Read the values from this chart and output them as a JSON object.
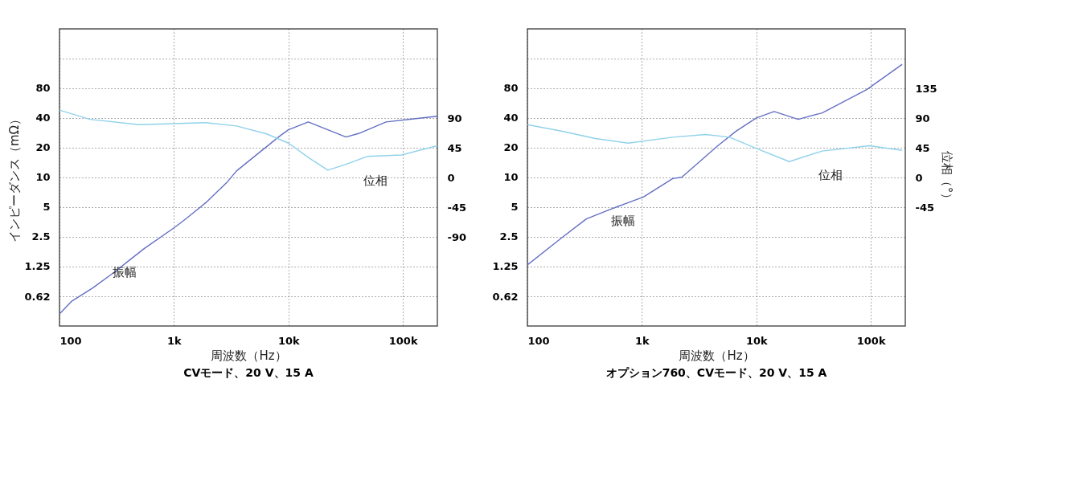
{
  "chart_data": [
    {
      "type": "line",
      "xlabel": "周波数（Hz）",
      "ylabel": "インピーダンス（mΩ）",
      "log": "xy",
      "grid": true,
      "line_style": "solid",
      "xlim": [
        100,
        200000
      ],
      "xticks": [
        100,
        {
          "value": 1000,
          "label": "1k"
        },
        {
          "value": 10000,
          "label": "10k"
        },
        {
          "value": 100000,
          "label": "100k"
        }
      ],
      "ylim": [
        0.31,
        320
      ],
      "yticks": [
        0.62,
        1.25,
        2.5,
        5,
        10,
        20,
        40,
        80,
        {
          "value": 160,
          "label": null
        }
      ],
      "y2lim": [
        -225,
        225
      ],
      "y2ticks": [
        -90,
        -45,
        0,
        45,
        90
      ],
      "series": [
        {
          "name": "振幅",
          "color": "#6470c4",
          "x": [
            100,
            127,
            194,
            301,
            383,
            552,
            1030,
            1310,
            1890,
            2930,
            3520,
            8320,
            10000,
            14900,
            22100,
            31800,
            41000,
            71300,
            200000
          ],
          "values": [
            0.41,
            0.55,
            0.75,
            1.09,
            1.36,
            1.9,
            3.14,
            3.9,
            5.5,
            9.0,
            11.6,
            26,
            30.3,
            36.4,
            30.3,
            25.6,
            27.8,
            36.4,
            41.6
          ]
        },
        {
          "name": "位相",
          "color": "#90d2ea",
          "axis": "y2",
          "x": [
            100,
            184,
            494,
            1890,
            3520,
            6450,
            10000,
            15300,
            22100,
            31800,
            49300,
            97200,
            200000
          ],
          "values": [
            102,
            88,
            80,
            83,
            78,
            66,
            52,
            29,
            11,
            20,
            32,
            34,
            48
          ]
        }
      ],
      "annotations": [
        "CVモード、20 V、15 A"
      ]
    },
    {
      "type": "line",
      "xlabel": "周波数（Hz）",
      "y2label": "位相（°）",
      "log": "xy",
      "grid": true,
      "line_style": "solid",
      "xlim": [
        100,
        200000
      ],
      "xticks": [
        100,
        {
          "value": 1000,
          "label": "1k"
        },
        {
          "value": 10000,
          "label": "10k"
        },
        {
          "value": 100000,
          "label": "100k"
        }
      ],
      "ylim": [
        0.31,
        320
      ],
      "yticks": [
        0.62,
        1.25,
        2.5,
        5,
        10,
        20,
        40,
        80,
        {
          "value": 160,
          "label": null
        }
      ],
      "y2lim": [
        -225,
        225
      ],
      "y2ticks": [
        -45,
        0,
        45,
        90,
        135
      ],
      "series": [
        {
          "name": "振幅",
          "color": "#6470c4",
          "x": [
            100,
            202,
            327,
            600,
            1030,
            1860,
            2230,
            4560,
            6610,
            10000,
            14300,
            23200,
            37600,
            92000,
            188000
          ],
          "values": [
            1.29,
            2.46,
            3.78,
            5.0,
            6.3,
            9.7,
            10,
            20.7,
            29.2,
            40,
            46.4,
            38.7,
            45,
            77.4,
            140
          ]
        },
        {
          "name": "位相",
          "color": "#90d2ea",
          "axis": "y2",
          "x": [
            100,
            202,
            392,
            760,
            1860,
            3600,
            5840,
            10000,
            19400,
            37600,
            97300,
            188000
          ],
          "values": [
            80,
            70,
            59,
            52,
            61,
            65,
            61,
            44,
            24,
            40,
            48,
            41
          ]
        }
      ],
      "annotations": [
        "オプション760、CVモード、20 V、15 A"
      ]
    }
  ]
}
